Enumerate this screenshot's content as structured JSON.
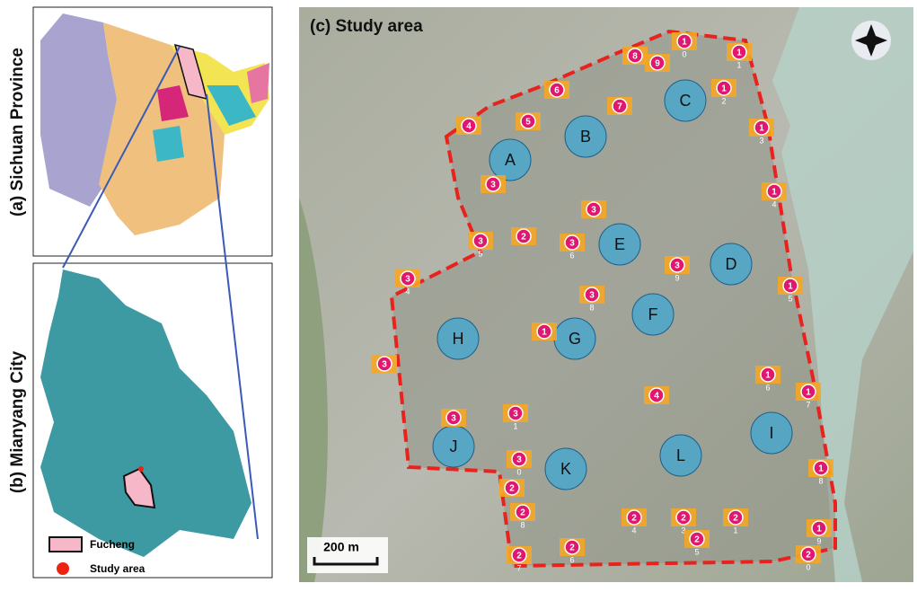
{
  "panels": {
    "a": "(a) Sichuan Province",
    "b": "(b) Mianyang City",
    "c": "(c) Study area"
  },
  "legend": {
    "fucheng": "Fucheng",
    "study_area": "Study area"
  },
  "scale_bar": "200 m",
  "zones": [
    "A",
    "B",
    "C",
    "D",
    "E",
    "F",
    "G",
    "H",
    "I",
    "J",
    "K",
    "L"
  ],
  "markers": [
    {
      "label": "1",
      "sub": "0"
    },
    {
      "label": "1",
      "sub": "1"
    },
    {
      "label": "8"
    },
    {
      "label": "9"
    },
    {
      "label": "1",
      "sub": "2"
    },
    {
      "label": "6"
    },
    {
      "label": "7"
    },
    {
      "label": "5"
    },
    {
      "label": "4"
    },
    {
      "label": "1",
      "sub": "3"
    },
    {
      "label": "3"
    },
    {
      "label": "1",
      "sub": "4"
    },
    {
      "label": "3"
    },
    {
      "label": "2"
    },
    {
      "label": "3",
      "sub": "5"
    },
    {
      "label": "3",
      "sub": "6"
    },
    {
      "label": "3",
      "sub": "9"
    },
    {
      "label": "3",
      "sub": "4"
    },
    {
      "label": "1",
      "sub": "5"
    },
    {
      "label": "3",
      "sub": "8"
    },
    {
      "label": "1"
    },
    {
      "label": "3"
    },
    {
      "label": "1",
      "sub": "6"
    },
    {
      "label": "1",
      "sub": "7"
    },
    {
      "label": "4"
    },
    {
      "label": "3"
    },
    {
      "label": "3",
      "sub": "1"
    },
    {
      "label": "3",
      "sub": "0"
    },
    {
      "label": "1",
      "sub": "8"
    },
    {
      "label": "2"
    },
    {
      "label": "2",
      "sub": "8"
    },
    {
      "label": "2",
      "sub": "4"
    },
    {
      "label": "2",
      "sub": "3"
    },
    {
      "label": "2",
      "sub": "1"
    },
    {
      "label": "1",
      "sub": "9"
    },
    {
      "label": "2",
      "sub": "5"
    },
    {
      "label": "2",
      "sub": "6"
    },
    {
      "label": "2",
      "sub": "7"
    },
    {
      "label": "2",
      "sub": "0"
    }
  ]
}
